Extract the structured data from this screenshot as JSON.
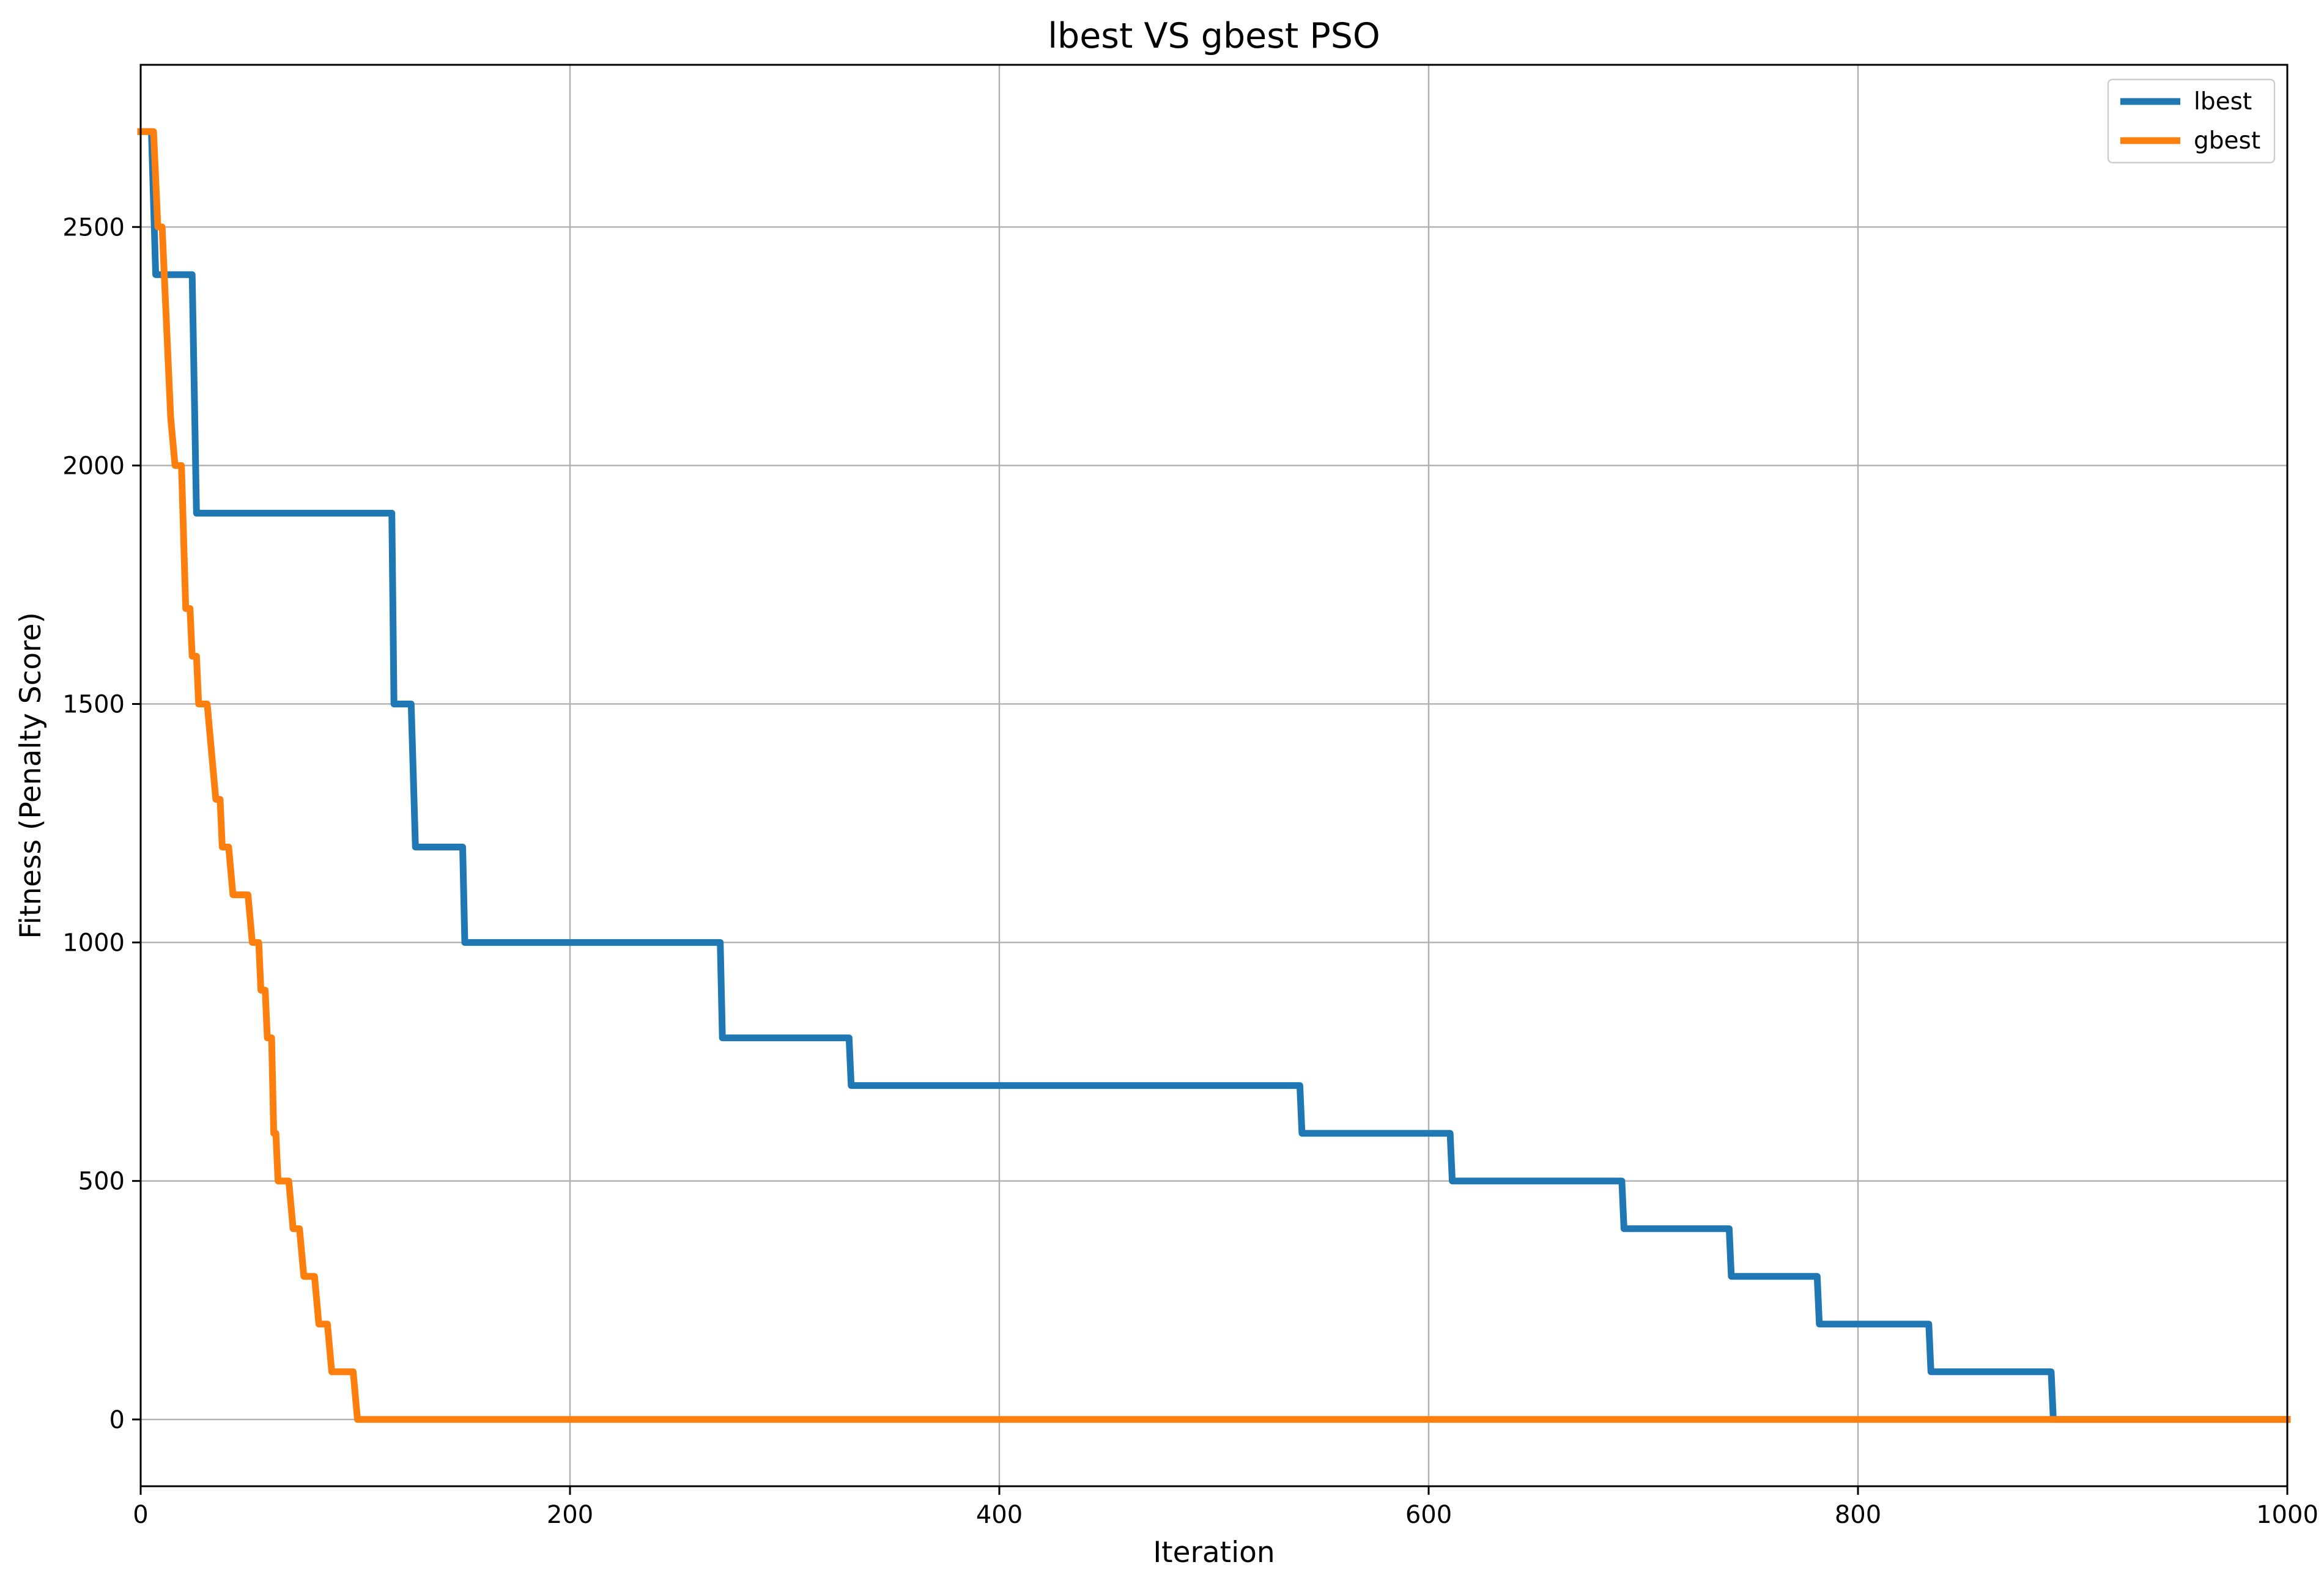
{
  "chart_data": {
    "type": "line",
    "title": "lbest VS gbest PSO",
    "xlabel": "Iteration",
    "ylabel": "Fitness (Penalty Score)",
    "xlim": [
      0,
      1000
    ],
    "ylim": [
      -140,
      2840
    ],
    "xticks": [
      0,
      200,
      400,
      600,
      800,
      1000
    ],
    "yticks": [
      0,
      500,
      1000,
      1500,
      2000,
      2500
    ],
    "xtick_labels": [
      "0",
      "200",
      "400",
      "600",
      "800",
      "1000"
    ],
    "ytick_labels": [
      "0",
      "500",
      "1000",
      "1500",
      "2000",
      "2500"
    ],
    "grid": true,
    "legend_position": "top-right",
    "series": [
      {
        "name": "lbest",
        "color": "#1f77b4",
        "points": [
          [
            0,
            2700
          ],
          [
            5,
            2700
          ],
          [
            7,
            2400
          ],
          [
            24,
            2400
          ],
          [
            26,
            1900
          ],
          [
            117,
            1900
          ],
          [
            118,
            1500
          ],
          [
            126,
            1500
          ],
          [
            128,
            1200
          ],
          [
            150,
            1200
          ],
          [
            151,
            1000
          ],
          [
            270,
            1000
          ],
          [
            271,
            800
          ],
          [
            330,
            800
          ],
          [
            331,
            700
          ],
          [
            540,
            700
          ],
          [
            541,
            600
          ],
          [
            610,
            600
          ],
          [
            611,
            500
          ],
          [
            690,
            500
          ],
          [
            691,
            400
          ],
          [
            740,
            400
          ],
          [
            741,
            300
          ],
          [
            781,
            300
          ],
          [
            782,
            200
          ],
          [
            833,
            200
          ],
          [
            834,
            100
          ],
          [
            890,
            100
          ],
          [
            891,
            0
          ],
          [
            1000,
            0
          ]
        ]
      },
      {
        "name": "gbest",
        "color": "#ff7f0e",
        "points": [
          [
            0,
            2700
          ],
          [
            6,
            2700
          ],
          [
            8,
            2500
          ],
          [
            10,
            2500
          ],
          [
            12,
            2300
          ],
          [
            14,
            2100
          ],
          [
            16,
            2000
          ],
          [
            19,
            2000
          ],
          [
            21,
            1700
          ],
          [
            23,
            1700
          ],
          [
            24,
            1600
          ],
          [
            26,
            1600
          ],
          [
            27,
            1500
          ],
          [
            31,
            1500
          ],
          [
            33,
            1400
          ],
          [
            35,
            1300
          ],
          [
            37,
            1300
          ],
          [
            38,
            1200
          ],
          [
            41,
            1200
          ],
          [
            43,
            1100
          ],
          [
            50,
            1100
          ],
          [
            52,
            1000
          ],
          [
            55,
            1000
          ],
          [
            56,
            900
          ],
          [
            58,
            900
          ],
          [
            59,
            800
          ],
          [
            61,
            800
          ],
          [
            62,
            600
          ],
          [
            63,
            600
          ],
          [
            64,
            500
          ],
          [
            69,
            500
          ],
          [
            71,
            400
          ],
          [
            74,
            400
          ],
          [
            76,
            300
          ],
          [
            81,
            300
          ],
          [
            83,
            200
          ],
          [
            87,
            200
          ],
          [
            89,
            100
          ],
          [
            99,
            100
          ],
          [
            101,
            0
          ],
          [
            1000,
            0
          ]
        ]
      }
    ]
  }
}
